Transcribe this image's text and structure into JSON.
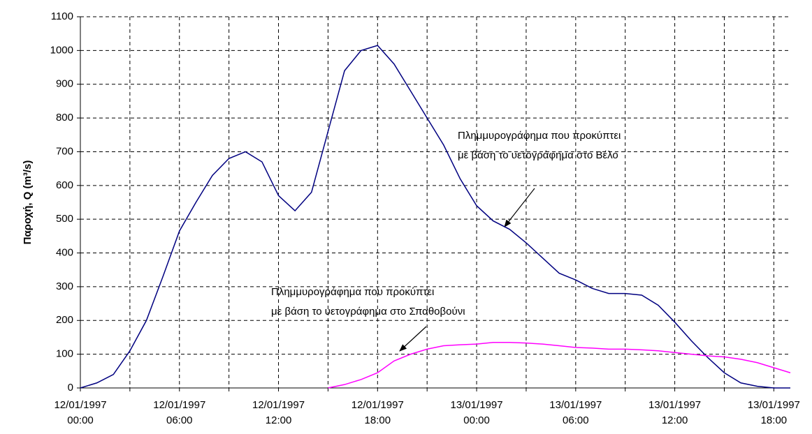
{
  "chart_data": {
    "type": "line",
    "y_label": "Παροχή, Q (m³/s)",
    "x": [
      0,
      1,
      2,
      3,
      4,
      5,
      6,
      7,
      8,
      9,
      10,
      11,
      12,
      13,
      14,
      15,
      16,
      17,
      18,
      19,
      20,
      21,
      22,
      23,
      24,
      25,
      26,
      27,
      28,
      29,
      30,
      31,
      32,
      33,
      34,
      35,
      36,
      37,
      38,
      39,
      40,
      41,
      42,
      43
    ],
    "series": [
      {
        "name": "Βέλο",
        "color": "#000080",
        "values": [
          0,
          15,
          40,
          110,
          200,
          330,
          465,
          550,
          630,
          680,
          700,
          670,
          570,
          525,
          580,
          760,
          940,
          1000,
          1015,
          960,
          880,
          800,
          720,
          620,
          540,
          495,
          470,
          430,
          385,
          340,
          320,
          295,
          280,
          280,
          275,
          245,
          195,
          140,
          90,
          45,
          15,
          5,
          0,
          0
        ]
      },
      {
        "name": "Σπαθοβούνι",
        "color": "#ff00ff",
        "values": [
          null,
          null,
          null,
          null,
          null,
          null,
          null,
          null,
          null,
          null,
          null,
          null,
          null,
          null,
          null,
          0,
          10,
          25,
          45,
          80,
          100,
          115,
          125,
          128,
          130,
          135,
          135,
          133,
          130,
          125,
          120,
          118,
          115,
          115,
          113,
          110,
          105,
          100,
          95,
          92,
          85,
          75,
          60,
          45
        ]
      }
    ],
    "xlim": [
      0,
      43
    ],
    "xticks": [
      {
        "value": 0,
        "label": "12/01/1997\n00:00"
      },
      {
        "value": 6,
        "label": "12/01/1997\n06:00"
      },
      {
        "value": 12,
        "label": "12/01/1997\n12:00"
      },
      {
        "value": 18,
        "label": "12/01/1997\n18:00"
      },
      {
        "value": 24,
        "label": "13/01/1997\n00:00"
      },
      {
        "value": 30,
        "label": "13/01/1997\n06:00"
      },
      {
        "value": 36,
        "label": "13/01/1997\n12:00"
      },
      {
        "value": 42,
        "label": "13/01/1997\n18:00"
      }
    ],
    "x_minor_ticks": [
      3,
      9,
      15,
      21,
      27,
      33,
      39
    ],
    "ylim": [
      0,
      1100
    ],
    "yticks": [
      0,
      100,
      200,
      300,
      400,
      500,
      600,
      700,
      800,
      900,
      1000,
      1100
    ],
    "grid": true,
    "annotations": [
      {
        "lines": [
          "Πλημμυρογράφημα που προκύπτει",
          "με βάση το υετογράφημα στο Βέλο"
        ]
      },
      {
        "lines": [
          "Πλημμυρογράφημα που προκύπτει",
          "με βάση το υετογράφημα στο Σπαθοβούνι"
        ]
      }
    ]
  }
}
